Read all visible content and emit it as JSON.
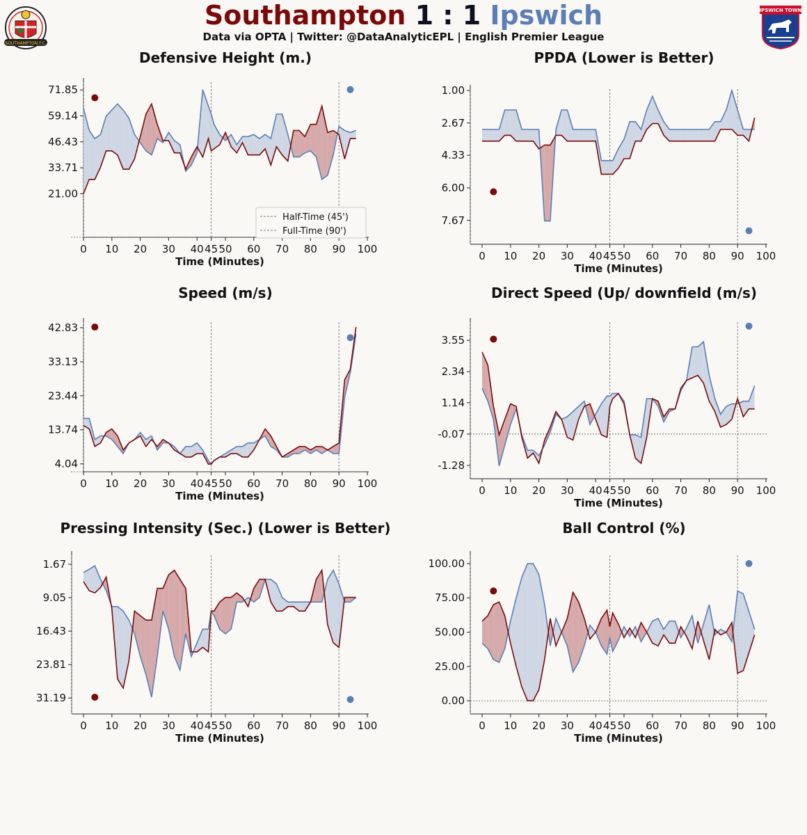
{
  "header": {
    "home_team": "Southampton",
    "away_team": "Ipswich",
    "score": "1 : 1",
    "subtitle": "Data via OPTA | Twitter: @DataAnalyticEPL | English Premier League",
    "home_crest_text": "SOUTHAMPTON F.C.",
    "away_crest_text": "IPSWICH TOWN"
  },
  "colors": {
    "home": "#7a0a0a",
    "away": "#5b7fb5",
    "home_fill": "#d4a5a5",
    "away_fill": "#cbd5e2",
    "background": "#faf8f5"
  },
  "chart_data": [
    {
      "type": "line",
      "title": "Defensive Height (m.)",
      "xlabel": "Time (Minutes)",
      "xticks": [
        "0",
        "10",
        "20",
        "30",
        "40",
        "45",
        "50",
        "60",
        "70",
        "80",
        "90",
        "100"
      ],
      "yticks": [
        "71.85",
        "59.14",
        "46.43",
        "33.71",
        "21.00"
      ],
      "ylim": [
        0,
        75
      ],
      "grid": false,
      "legend": {
        "position": "lower-right",
        "entries": [
          "Half-Time (45')",
          "Full-Time (90')"
        ]
      },
      "x": [
        0,
        2,
        4,
        6,
        8,
        10,
        12,
        14,
        16,
        18,
        20,
        22,
        24,
        26,
        28,
        30,
        32,
        34,
        36,
        38,
        40,
        42,
        44,
        45,
        46,
        48,
        50,
        52,
        54,
        56,
        58,
        60,
        62,
        64,
        66,
        68,
        70,
        72,
        74,
        76,
        78,
        80,
        82,
        84,
        86,
        88,
        90,
        92,
        94,
        96
      ],
      "series": [
        {
          "name": "Southampton",
          "values": [
            21,
            28,
            28,
            34,
            42,
            42,
            40,
            33,
            33,
            38,
            49,
            60,
            65,
            55,
            47,
            47,
            41,
            41,
            33,
            39,
            44,
            39,
            48,
            42,
            43,
            45,
            51,
            44,
            41,
            46,
            40,
            40,
            40,
            43,
            35,
            44,
            40,
            37,
            52,
            52,
            49,
            55,
            55,
            64,
            51,
            52,
            50,
            38,
            48,
            48
          ]
        },
        {
          "name": "Ipswich",
          "values": [
            63,
            52,
            48,
            50,
            59,
            62,
            65,
            62,
            58,
            50,
            46,
            42,
            40,
            48,
            46,
            51,
            47,
            45,
            32,
            35,
            41,
            72,
            64,
            60,
            55,
            50,
            47,
            50,
            45,
            49,
            49,
            50,
            48,
            50,
            48,
            60,
            60,
            50,
            39,
            39,
            41,
            42,
            39,
            28,
            30,
            40,
            54,
            52,
            51,
            52
          ]
        }
      ],
      "markers": {
        "home": 68,
        "away": 72
      }
    },
    {
      "type": "line",
      "title": "PPDA (Lower is Better)",
      "xlabel": "Time (Minutes)",
      "xticks": [
        "0",
        "10",
        "20",
        "30",
        "40",
        "45",
        "50",
        "60",
        "70",
        "80",
        "90",
        "100"
      ],
      "yticks": [
        "1.00",
        "2.67",
        "4.33",
        "6.00",
        "7.67"
      ],
      "ylim": [
        8.5,
        1
      ],
      "inverted": true,
      "grid": false,
      "x": [
        0,
        2,
        4,
        6,
        8,
        10,
        12,
        14,
        16,
        18,
        20,
        22,
        24,
        26,
        28,
        30,
        32,
        34,
        36,
        38,
        40,
        42,
        44,
        45,
        46,
        48,
        50,
        52,
        54,
        56,
        58,
        60,
        62,
        64,
        66,
        68,
        70,
        72,
        74,
        76,
        78,
        80,
        82,
        84,
        86,
        88,
        90,
        92,
        94,
        96
      ],
      "series": [
        {
          "name": "Southampton",
          "values": [
            3.6,
            3.6,
            3.6,
            3.6,
            3.3,
            3.3,
            3.6,
            3.6,
            3.6,
            3.6,
            4.0,
            3.8,
            3.8,
            3.3,
            3.3,
            3.6,
            3.6,
            3.6,
            3.6,
            3.6,
            3.6,
            5.3,
            5.3,
            5.3,
            5.3,
            5.0,
            4.5,
            4.5,
            3.6,
            3.6,
            3.0,
            2.7,
            2.7,
            3.3,
            3.6,
            3.6,
            3.6,
            3.6,
            3.6,
            3.6,
            3.6,
            3.6,
            3.6,
            3.0,
            3.0,
            3.0,
            3.3,
            3.3,
            3.6,
            2.4
          ]
        },
        {
          "name": "Ipswich",
          "values": [
            3.0,
            3.0,
            3.0,
            3.0,
            2.0,
            2.0,
            2.0,
            3.0,
            3.0,
            3.0,
            3.0,
            7.7,
            7.7,
            3.0,
            2.0,
            2.0,
            3.0,
            3.0,
            3.0,
            3.0,
            3.0,
            4.6,
            4.6,
            4.6,
            4.6,
            4.0,
            3.5,
            2.6,
            2.6,
            3.0,
            2.0,
            1.3,
            2.0,
            2.6,
            3.0,
            3.0,
            3.0,
            3.0,
            3.0,
            3.0,
            3.0,
            3.0,
            2.6,
            2.6,
            2.0,
            1.0,
            2.0,
            3.0,
            3.0,
            3.0
          ]
        }
      ],
      "markers": {
        "home": 6.2,
        "away": 8.2
      }
    },
    {
      "type": "line",
      "title": "Speed (m/s)",
      "xlabel": "Time (Minutes)",
      "xticks": [
        "0",
        "10",
        "20",
        "30",
        "40",
        "45",
        "50",
        "60",
        "70",
        "80",
        "90",
        "100"
      ],
      "yticks": [
        "42.83",
        "33.13",
        "23.44",
        "13.74",
        "4.04"
      ],
      "ylim": [
        2,
        44
      ],
      "grid": false,
      "x": [
        0,
        2,
        4,
        6,
        8,
        10,
        12,
        14,
        16,
        18,
        20,
        22,
        24,
        26,
        28,
        30,
        32,
        34,
        36,
        38,
        40,
        42,
        44,
        45,
        46,
        48,
        50,
        52,
        54,
        56,
        58,
        60,
        62,
        64,
        66,
        68,
        70,
        72,
        74,
        76,
        78,
        80,
        82,
        84,
        86,
        88,
        90,
        92,
        94,
        96
      ],
      "series": [
        {
          "name": "Southampton",
          "values": [
            15,
            14,
            9,
            10,
            13,
            14,
            12,
            8,
            10,
            11,
            12,
            9,
            11,
            9,
            11,
            10,
            8,
            7,
            6,
            6,
            7,
            7,
            4,
            4,
            5,
            6,
            6,
            7,
            7,
            6,
            6,
            8,
            11,
            14,
            12,
            9,
            6,
            7,
            8,
            9,
            9,
            8,
            9,
            9,
            8,
            9,
            10,
            28,
            31,
            43
          ]
        },
        {
          "name": "Ipswich",
          "values": [
            17,
            17,
            11,
            12,
            12,
            11,
            9,
            7,
            10,
            11,
            13,
            11,
            12,
            8,
            10,
            10,
            9,
            7,
            9,
            9,
            10,
            8,
            5,
            4,
            5,
            6,
            7,
            8,
            9,
            9,
            10,
            10,
            11,
            12,
            9,
            8,
            6,
            6,
            7,
            7,
            8,
            7,
            8,
            7,
            8,
            7,
            7,
            23,
            30,
            41
          ]
        }
      ],
      "markers": {
        "home": 43,
        "away": 40
      }
    },
    {
      "type": "line",
      "title": "Direct Speed (Up/ downfield (m/s)",
      "xlabel": "Time (Minutes)",
      "xticks": [
        "0",
        "10",
        "20",
        "30",
        "40",
        "45",
        "50",
        "60",
        "70",
        "80",
        "90",
        "100"
      ],
      "yticks": [
        "3.55",
        "2.34",
        "1.14",
        "-0.07",
        "-1.28"
      ],
      "ylim": [
        -1.5,
        4.2
      ],
      "grid": false,
      "x": [
        0,
        2,
        4,
        6,
        8,
        10,
        12,
        14,
        16,
        18,
        20,
        22,
        24,
        26,
        28,
        30,
        32,
        34,
        36,
        38,
        40,
        42,
        44,
        45,
        46,
        48,
        50,
        52,
        54,
        56,
        58,
        60,
        62,
        64,
        66,
        68,
        70,
        72,
        74,
        76,
        78,
        80,
        82,
        84,
        86,
        88,
        90,
        92,
        94,
        96
      ],
      "series": [
        {
          "name": "Southampton",
          "values": [
            3.1,
            2.6,
            1.0,
            -0.1,
            0.5,
            1.1,
            1.0,
            -0.2,
            -1.0,
            -0.8,
            -1.2,
            -0.3,
            0.2,
            0.8,
            0.5,
            -0.2,
            -0.3,
            0.5,
            1.0,
            1.1,
            0.5,
            -0.1,
            -0.2,
            1.0,
            1.3,
            1.5,
            1.1,
            -0.1,
            -1.0,
            -1.2,
            -0.2,
            1.3,
            1.2,
            0.6,
            0.9,
            0.9,
            1.7,
            2.0,
            2.1,
            2.2,
            1.9,
            1.2,
            0.8,
            0.2,
            0.3,
            0.5,
            1.3,
            0.6,
            0.9,
            0.9
          ]
        },
        {
          "name": "Ipswich",
          "values": [
            1.7,
            1.2,
            0.5,
            -1.3,
            -0.5,
            0.3,
            0.9,
            -0.1,
            -0.7,
            -0.7,
            -0.9,
            -0.5,
            0.0,
            0.7,
            0.5,
            0.6,
            0.8,
            1.0,
            1.2,
            0.3,
            0.7,
            1.1,
            1.4,
            1.4,
            1.5,
            1.5,
            1.2,
            -0.1,
            -0.1,
            -0.2,
            1.3,
            1.3,
            1.0,
            0.4,
            0.8,
            0.9,
            1.6,
            2.0,
            3.3,
            3.3,
            3.5,
            2.2,
            1.3,
            0.7,
            1.0,
            1.1,
            1.1,
            1.2,
            1.2,
            1.8
          ]
        }
      ],
      "markers": {
        "home": 3.6,
        "away": 4.1
      }
    },
    {
      "type": "line",
      "title": "Pressing Intensity (Sec.) (Lower is Better)",
      "xlabel": "Time (Minutes)",
      "xticks": [
        "0",
        "10",
        "20",
        "30",
        "40",
        "45",
        "50",
        "60",
        "70",
        "80",
        "90",
        "100"
      ],
      "yticks": [
        "1.67",
        "9.05",
        "16.43",
        "23.81",
        "31.19"
      ],
      "ylim": [
        33,
        0
      ],
      "inverted": true,
      "grid": false,
      "x": [
        0,
        2,
        4,
        6,
        8,
        10,
        12,
        14,
        16,
        18,
        20,
        22,
        24,
        26,
        28,
        30,
        32,
        34,
        36,
        38,
        40,
        42,
        44,
        45,
        46,
        48,
        50,
        52,
        54,
        56,
        58,
        60,
        62,
        64,
        66,
        68,
        70,
        72,
        74,
        76,
        78,
        80,
        82,
        84,
        86,
        88,
        90,
        92,
        94,
        96
      ],
      "series": [
        {
          "name": "Southampton",
          "values": [
            5.5,
            7.5,
            8,
            6.8,
            4.5,
            11.5,
            27,
            29,
            23,
            12,
            13,
            14,
            14,
            7,
            7,
            4,
            3,
            5,
            7,
            21,
            21,
            20,
            21,
            12,
            12,
            10,
            9,
            9,
            8,
            9,
            11,
            7,
            5,
            5,
            10,
            12,
            12,
            11,
            11,
            12,
            12,
            10,
            5,
            3,
            15,
            19,
            20,
            9,
            9,
            9
          ]
        },
        {
          "name": "Ipswich",
          "values": [
            3.5,
            2.8,
            2,
            5,
            7.5,
            11,
            11,
            12,
            14,
            17,
            22,
            26,
            31,
            22,
            12,
            16,
            22,
            25,
            17,
            22,
            19,
            16,
            16,
            12,
            13,
            16,
            17,
            16,
            10,
            10,
            9,
            10,
            9,
            5,
            5,
            6,
            9,
            10,
            10,
            10,
            10,
            10,
            10,
            10,
            5,
            3,
            6,
            10,
            10,
            9
          ]
        }
      ],
      "markers": {
        "home": 31,
        "away": 31.5
      }
    },
    {
      "type": "line",
      "title": "Ball Control (%)",
      "xlabel": "Time (Minutes)",
      "xticks": [
        "0",
        "10",
        "20",
        "30",
        "40",
        "45",
        "50",
        "60",
        "70",
        "80",
        "90",
        "100"
      ],
      "yticks": [
        "100.00",
        "75.00",
        "50.00",
        "25.00",
        "0.00"
      ],
      "ylim": [
        -4,
        105
      ],
      "grid": false,
      "x": [
        0,
        2,
        4,
        6,
        8,
        10,
        12,
        14,
        16,
        18,
        20,
        22,
        24,
        26,
        28,
        30,
        32,
        34,
        36,
        38,
        40,
        42,
        44,
        45,
        46,
        48,
        50,
        52,
        54,
        56,
        58,
        60,
        62,
        64,
        66,
        68,
        70,
        72,
        74,
        76,
        78,
        80,
        82,
        84,
        86,
        88,
        90,
        92,
        94,
        96
      ],
      "series": [
        {
          "name": "Southampton",
          "values": [
            58,
            62,
            70,
            72,
            62,
            42,
            25,
            10,
            0,
            0,
            8,
            30,
            60,
            40,
            50,
            60,
            79,
            72,
            60,
            45,
            50,
            60,
            66,
            54,
            64,
            56,
            46,
            53,
            46,
            57,
            50,
            42,
            40,
            48,
            42,
            42,
            54,
            47,
            38,
            58,
            44,
            30,
            52,
            48,
            50,
            57,
            20,
            22,
            35,
            48
          ]
        },
        {
          "name": "Ipswich",
          "values": [
            42,
            38,
            30,
            28,
            38,
            58,
            75,
            90,
            100,
            100,
            92,
            70,
            40,
            60,
            50,
            40,
            21,
            28,
            40,
            55,
            50,
            40,
            34,
            46,
            36,
            44,
            54,
            47,
            54,
            43,
            50,
            58,
            60,
            52,
            58,
            58,
            46,
            53,
            62,
            42,
            56,
            70,
            48,
            52,
            50,
            43,
            80,
            78,
            65,
            52
          ]
        }
      ],
      "markers": {
        "home": 80,
        "away": 100
      }
    }
  ]
}
